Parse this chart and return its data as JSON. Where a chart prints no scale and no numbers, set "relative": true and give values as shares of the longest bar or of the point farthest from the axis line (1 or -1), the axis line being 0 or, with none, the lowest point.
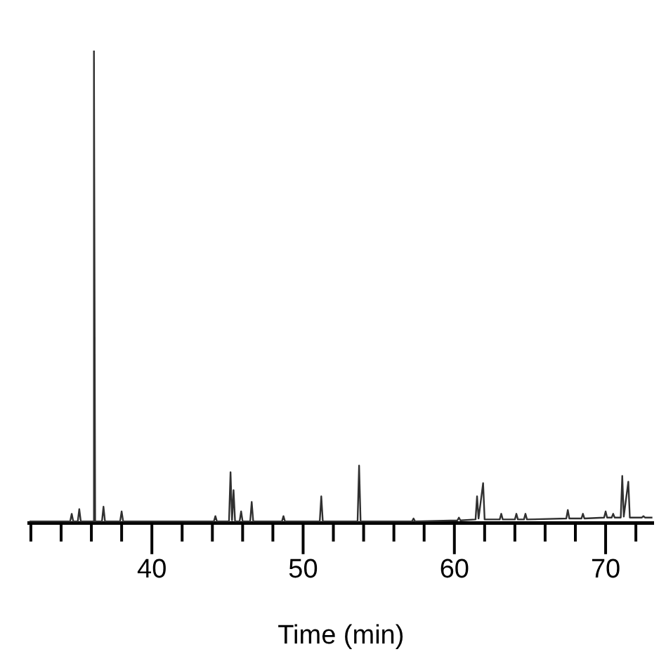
{
  "chart_data": {
    "type": "line",
    "xlabel": "Time (min)",
    "relative": true,
    "marker": "none",
    "color": "#303030",
    "xlim": [
      31.9,
      73.1
    ],
    "xticks": [
      {
        "value": 32,
        "label": null
      },
      {
        "value": 34,
        "label": null
      },
      {
        "value": 36,
        "label": null
      },
      {
        "value": 38,
        "label": null
      },
      40,
      {
        "value": 42,
        "label": null
      },
      {
        "value": 44,
        "label": null
      },
      {
        "value": 46,
        "label": null
      },
      {
        "value": 48,
        "label": null
      },
      50,
      {
        "value": 52,
        "label": null
      },
      {
        "value": 54,
        "label": null
      },
      {
        "value": 56,
        "label": null
      },
      {
        "value": 58,
        "label": null
      },
      60,
      {
        "value": 62,
        "label": null
      },
      {
        "value": 64,
        "label": null
      },
      {
        "value": 66,
        "label": null
      },
      {
        "value": 68,
        "label": null
      },
      70,
      {
        "value": 72,
        "label": null
      }
    ],
    "x": [
      31.9,
      34.6,
      34.7,
      34.8,
      35.1,
      35.2,
      35.3,
      36.1,
      36.17,
      36.25,
      36.7,
      36.8,
      36.9,
      37.9,
      38.0,
      38.1,
      44.1,
      44.2,
      44.3,
      45.1,
      45.2,
      45.3,
      45.4,
      45.5,
      45.8,
      45.9,
      46.0,
      46.5,
      46.6,
      46.7,
      48.6,
      48.7,
      48.8,
      51.1,
      51.2,
      51.3,
      53.6,
      53.7,
      53.8,
      57.2,
      57.3,
      57.4,
      60.2,
      60.3,
      60.4,
      61.4,
      61.5,
      61.6,
      61.9,
      62.0,
      63.0,
      63.1,
      63.2,
      64.0,
      64.1,
      64.2,
      64.6,
      64.7,
      64.8,
      67.4,
      67.5,
      67.6,
      68.4,
      68.5,
      68.6,
      69.9,
      70.0,
      70.1,
      70.4,
      70.5,
      70.6,
      71.0,
      71.1,
      71.2,
      71.5,
      71.6,
      72.4,
      72.5,
      72.6,
      73.1
    ],
    "values": [
      0.004,
      0.004,
      0.02,
      0.004,
      0.004,
      0.03,
      0.004,
      0.004,
      1,
      0.004,
      0.004,
      0.035,
      0.004,
      0.004,
      0.025,
      0.004,
      0.004,
      0.015,
      0.004,
      0.004,
      0.108,
      0.006,
      0.07,
      0.004,
      0.004,
      0.025,
      0.004,
      0.004,
      0.045,
      0.004,
      0.004,
      0.015,
      0.004,
      0.004,
      0.057,
      0.004,
      0.004,
      0.122,
      0.004,
      0.004,
      0.01,
      0.004,
      0.006,
      0.012,
      0.006,
      0.008,
      0.057,
      0.01,
      0.085,
      0.008,
      0.008,
      0.02,
      0.008,
      0.008,
      0.02,
      0.008,
      0.008,
      0.02,
      0.008,
      0.01,
      0.028,
      0.01,
      0.01,
      0.02,
      0.01,
      0.012,
      0.025,
      0.012,
      0.012,
      0.02,
      0.012,
      0.012,
      0.1,
      0.014,
      0.088,
      0.012,
      0.012,
      0.015,
      0.012,
      0.012
    ]
  }
}
